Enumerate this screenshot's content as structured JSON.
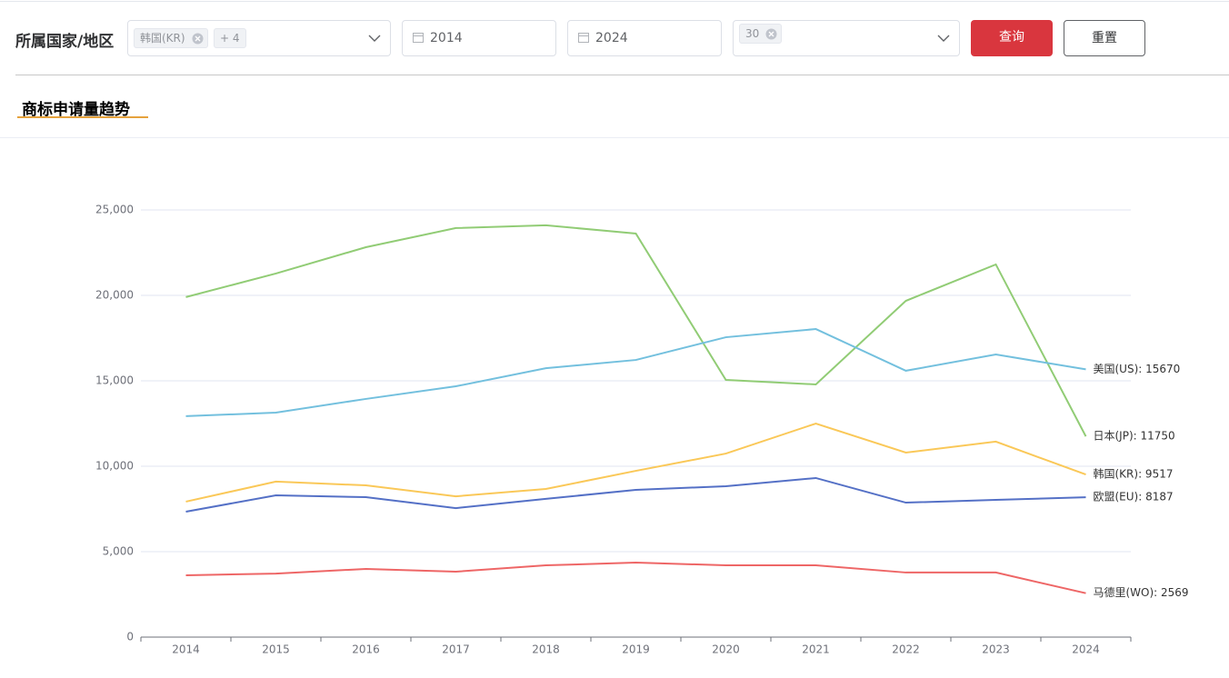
{
  "filter": {
    "label": "所属国家/地区",
    "country_tag": "韩国(KR)",
    "more_tag": "+ 4",
    "start_year": "2014",
    "end_year": "2024",
    "top_n_tag": "30",
    "query_button": "查询",
    "reset_button": "重置"
  },
  "section": {
    "title": "商标申请量趋势"
  },
  "chart_data": {
    "type": "line",
    "categories": [
      "2014",
      "2015",
      "2016",
      "2017",
      "2018",
      "2019",
      "2020",
      "2021",
      "2022",
      "2023",
      "2024"
    ],
    "ylim": [
      0,
      25000
    ],
    "yticks": [
      0,
      {
        "value": 5000,
        "label": "5,000"
      },
      {
        "value": 10000,
        "label": "10,000"
      },
      {
        "value": 15000,
        "label": "15,000"
      },
      {
        "value": 20000,
        "label": "20,000"
      },
      {
        "value": 25000,
        "label": "25,000"
      }
    ],
    "grid": true,
    "series": [
      {
        "label": "日本(JP): 11750",
        "color": "#91cc75",
        "values": [
          19900,
          21280,
          22820,
          23940,
          24100,
          23620,
          15050,
          14790,
          19680,
          21810,
          11750
        ]
      },
      {
        "label": "美国(US): 15670",
        "color": "#73c0de",
        "values": [
          12930,
          13140,
          13940,
          14680,
          15740,
          16220,
          17550,
          18030,
          15590,
          16540,
          15670
        ]
      },
      {
        "label": "韩国(KR): 9517",
        "color": "#fac858",
        "values": [
          7930,
          9100,
          8880,
          8240,
          8670,
          9730,
          10740,
          12500,
          10800,
          11440,
          9517
        ]
      },
      {
        "label": "欧盟(EU): 8187",
        "color": "#5470c6",
        "values": [
          7340,
          8300,
          8190,
          7550,
          8090,
          8620,
          8830,
          9310,
          7870,
          8030,
          8187
        ]
      },
      {
        "label": "马德里(WO): 2569",
        "color": "#ee6666",
        "values": [
          3620,
          3720,
          3990,
          3830,
          4200,
          4360,
          4200,
          4200,
          3780,
          3780,
          2569
        ]
      }
    ]
  }
}
